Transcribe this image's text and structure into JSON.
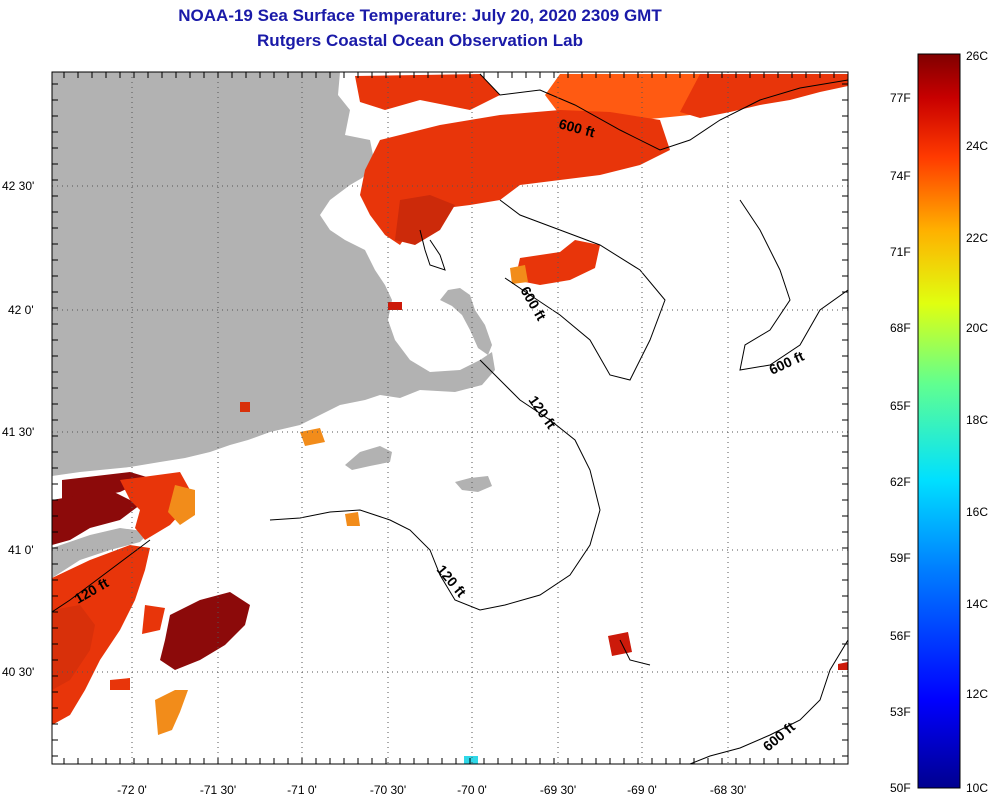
{
  "title": "NOAA-19 Sea Surface Temperature:  July 20, 2020 2309 GMT",
  "subtitle": "Rutgers Coastal Ocean Observation Lab",
  "map": {
    "lon_labels": [
      "-72 0'",
      "-71 30'",
      "-71 0'",
      "-70 30'",
      "-70 0'",
      "-69 30'",
      "-69 0'",
      "-68 30'"
    ],
    "lat_labels": [
      "42 30'",
      "42 0'",
      "41 30'",
      "41 0'",
      "40 30'"
    ],
    "contour_labels": [
      "600 ft",
      "600 ft",
      "600 ft",
      "600 ft",
      "120 ft",
      "120 ft",
      "120 ft"
    ]
  },
  "colorbar": {
    "fahrenheit": [
      "77F",
      "74F",
      "71F",
      "68F",
      "65F",
      "62F",
      "59F",
      "56F",
      "53F",
      "50F"
    ],
    "celsius": [
      "26C",
      "24C",
      "22C",
      "20C",
      "18C",
      "16C",
      "14C",
      "12C",
      "10C"
    ]
  },
  "colors": {
    "title": "#1a1aa8",
    "land": "#b2b2b2",
    "warm": "#e8350a",
    "hot": "#8c0a0a",
    "mid": "#f28c1a"
  }
}
